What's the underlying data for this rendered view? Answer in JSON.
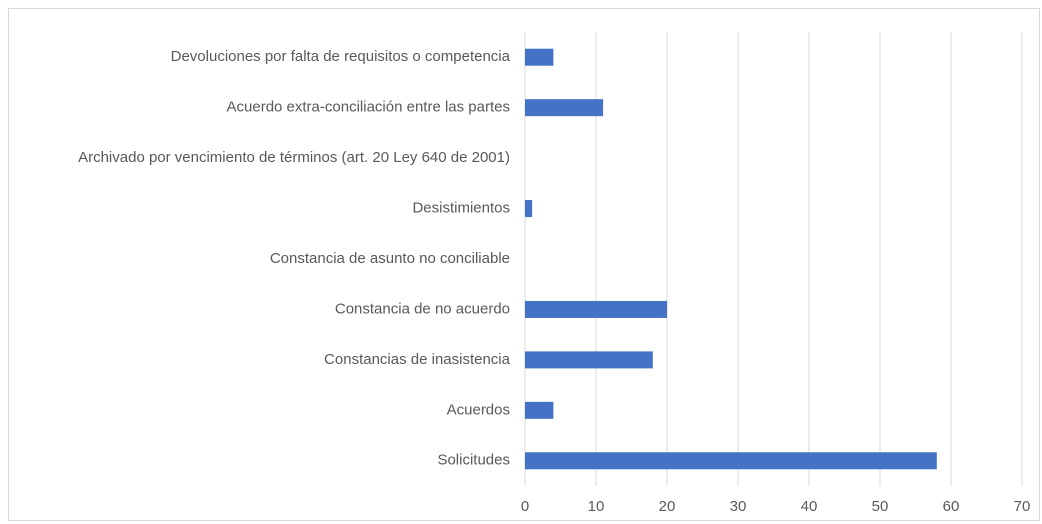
{
  "chart_data": {
    "type": "bar",
    "orientation": "horizontal",
    "categories": [
      "Devoluciones por falta de requisitos o competencia",
      "Acuerdo extra-conciliación entre las partes",
      "Archivado por vencimiento de términos (art. 20 Ley 640 de 2001)",
      "Desistimientos",
      "Constancia de asunto no conciliable",
      "Constancia de no acuerdo",
      "Constancias de inasistencia",
      "Acuerdos",
      "Solicitudes"
    ],
    "values": [
      4,
      11,
      0,
      1,
      0,
      20,
      18,
      4,
      58
    ],
    "color": "#4472c4",
    "xlim": [
      0,
      70
    ],
    "xticks": [
      0,
      10,
      20,
      30,
      40,
      50,
      60,
      70
    ],
    "grid": true
  }
}
